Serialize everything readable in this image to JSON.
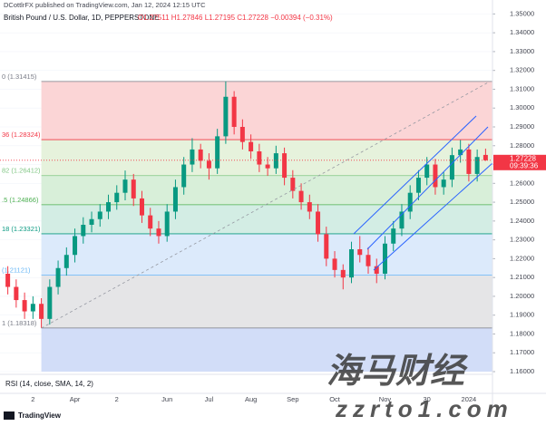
{
  "header": {
    "publisher": "DCottlrFX published on TradingView.com, Jan 12, 2024 12:15 UTC",
    "symbol": "British Pound / U.S. Dollar, 1D, PEPPERSTONE",
    "ohlc": "O1.27511 H1.27846 L1.27195 C1.27228 −0.00394 (−0.31%)"
  },
  "chart_data": {
    "type": "candlestick",
    "categories": [
      null,
      null,
      null,
      "2",
      null,
      null,
      null,
      null,
      "Apr",
      null,
      null,
      null,
      null,
      "2",
      null,
      null,
      null,
      null,
      null,
      "Jun",
      null,
      null,
      null,
      null,
      "Jul",
      null,
      null,
      null,
      null,
      "Aug",
      null,
      null,
      null,
      null,
      "Sep",
      null,
      null,
      null,
      null,
      "Oct",
      null,
      null,
      null,
      null,
      null,
      "Nov",
      null,
      null,
      null,
      null,
      "30",
      null,
      null,
      null,
      null,
      "2024",
      null,
      null
    ],
    "open": [
      1.212,
      1.205,
      1.198,
      1.192,
      1.196,
      1.188,
      1.205,
      1.215,
      1.222,
      1.232,
      1.238,
      1.241,
      1.245,
      1.25,
      1.255,
      1.262,
      1.252,
      1.243,
      1.236,
      1.232,
      1.245,
      1.258,
      1.27,
      1.278,
      1.272,
      1.268,
      1.285,
      1.306,
      1.29,
      1.282,
      1.277,
      1.27,
      1.268,
      1.276,
      1.263,
      1.256,
      1.25,
      1.245,
      1.233,
      1.22,
      1.214,
      1.21,
      1.225,
      1.222,
      1.216,
      1.212,
      1.228,
      1.236,
      1.245,
      1.255,
      1.263,
      1.27,
      1.258,
      1.262,
      1.275,
      1.278,
      1.265,
      1.27511
    ],
    "high": [
      1.216,
      1.209,
      1.202,
      1.2,
      1.199,
      1.209,
      1.219,
      1.226,
      1.236,
      1.242,
      1.245,
      1.249,
      1.254,
      1.259,
      1.2668,
      1.265,
      1.256,
      1.247,
      1.24,
      1.249,
      1.262,
      1.274,
      1.284,
      1.281,
      1.276,
      1.289,
      1.31415,
      1.309,
      1.294,
      1.286,
      1.281,
      1.274,
      1.28,
      1.279,
      1.267,
      1.26,
      1.254,
      1.249,
      1.237,
      1.224,
      1.217,
      1.229,
      1.232,
      1.226,
      1.22,
      1.232,
      1.24,
      1.249,
      1.259,
      1.267,
      1.274,
      1.273,
      1.266,
      1.279,
      1.283,
      1.281,
      1.278,
      1.27846
    ],
    "low": [
      1.201,
      1.194,
      1.188,
      1.188,
      1.18318,
      1.185,
      1.201,
      1.211,
      1.218,
      1.228,
      1.234,
      1.237,
      1.241,
      1.246,
      1.251,
      1.248,
      1.239,
      1.232,
      1.228,
      1.229,
      1.241,
      1.254,
      1.266,
      1.268,
      1.262,
      1.265,
      1.281,
      1.286,
      1.278,
      1.273,
      1.266,
      1.264,
      1.265,
      1.259,
      1.252,
      1.246,
      1.241,
      1.229,
      1.216,
      1.21,
      1.2037,
      1.207,
      1.218,
      1.212,
      1.207,
      1.209,
      1.224,
      1.232,
      1.241,
      1.251,
      1.259,
      1.254,
      1.254,
      1.258,
      1.271,
      1.261,
      1.261,
      1.27195
    ],
    "close": [
      1.205,
      1.198,
      1.192,
      1.196,
      1.188,
      1.205,
      1.215,
      1.222,
      1.232,
      1.238,
      1.241,
      1.245,
      1.25,
      1.255,
      1.262,
      1.252,
      1.243,
      1.236,
      1.232,
      1.245,
      1.258,
      1.27,
      1.278,
      1.272,
      1.268,
      1.285,
      1.306,
      1.29,
      1.282,
      1.277,
      1.27,
      1.268,
      1.276,
      1.263,
      1.256,
      1.25,
      1.245,
      1.233,
      1.22,
      1.214,
      1.21,
      1.225,
      1.222,
      1.216,
      1.212,
      1.228,
      1.236,
      1.245,
      1.255,
      1.263,
      1.27,
      1.258,
      1.262,
      1.275,
      1.278,
      1.265,
      1.274,
      1.27228
    ],
    "up_color": "#089981",
    "down_color": "#f23645",
    "ylim": [
      1.16,
      1.355
    ],
    "yticks": [
      {
        "value": 1.16,
        "label": "1.16000"
      },
      {
        "value": 1.17,
        "label": "1.17000"
      },
      {
        "value": 1.18,
        "label": "1.18000"
      },
      {
        "value": 1.19,
        "label": "1.19000"
      },
      {
        "value": 1.2,
        "label": "1.20000"
      },
      {
        "value": 1.21,
        "label": "1.21000"
      },
      {
        "value": 1.22,
        "label": "1.22000"
      },
      {
        "value": 1.23,
        "label": "1.23000"
      },
      {
        "value": 1.24,
        "label": "1.24000"
      },
      {
        "value": 1.25,
        "label": "1.25000"
      },
      {
        "value": 1.26,
        "label": "1.26000"
      },
      {
        "value": 1.27,
        "label": "1.27000"
      },
      {
        "value": 1.28,
        "label": "1.28000"
      },
      {
        "value": 1.29,
        "label": "1.29000"
      },
      {
        "value": 1.3,
        "label": "1.30000"
      },
      {
        "value": 1.31,
        "label": "1.31000"
      },
      {
        "value": 1.32,
        "label": "1.32000"
      },
      {
        "value": 1.33,
        "label": "1.33000"
      },
      {
        "value": 1.34,
        "label": "1.34000"
      },
      {
        "value": 1.35,
        "label": "1.35000"
      }
    ],
    "fib_levels": [
      {
        "label": "0 (1.31415)",
        "value": 1.31415,
        "color": "#787b86",
        "fill": "#fbd5d6"
      },
      {
        "label": "36 (1.28324)",
        "value": 1.28324,
        "color": "#f23645",
        "fill": "#e6f2dc"
      },
      {
        "label": "82 (1.26412)",
        "value": 1.26412,
        "color": "#81c784",
        "fill": "#d8efd9"
      },
      {
        "label": ".5 (1.24866)",
        "value": 1.24866,
        "color": "#4caf50",
        "fill": "#d3ede4"
      },
      {
        "label": "18 (1.23321)",
        "value": 1.23321,
        "color": "#089981",
        "fill": "#dceafb"
      },
      {
        "label": "(1.21121)",
        "value": 1.21121,
        "color": "#64b5f6",
        "fill": "#e5e5e7"
      },
      {
        "label": "1 (1.18318)",
        "value": 1.18318,
        "color": "#787b86",
        "fill": "#d2ddf8"
      }
    ],
    "last_price": 1.27228,
    "countdown": "09:39:36",
    "indicator": "RSI (14, close, SMA, 14, 2)"
  },
  "footer": {
    "brand": "TradingView"
  },
  "watermark": {
    "title": "海马财经",
    "url": "zzrto1.com"
  }
}
